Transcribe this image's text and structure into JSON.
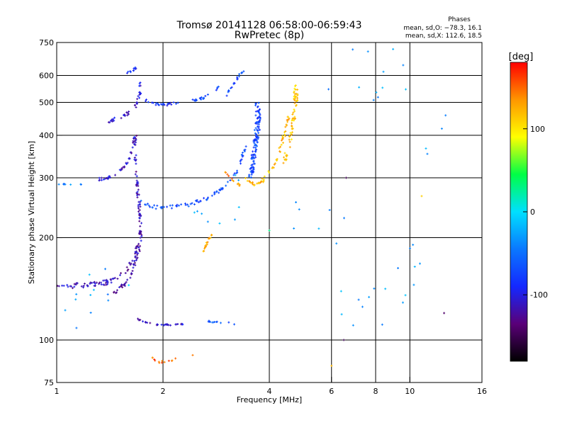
{
  "chart_data": {
    "type": "scatter",
    "title": "Tromsø 20141128 06:58:00-06:59:43",
    "subtitle": "RwPretec (8p)",
    "xlabel": "Frequency [MHz]",
    "ylabel": "Stationary phase Virtual Height [km]",
    "x_scale": "log2",
    "y_scale": "log",
    "xlim": [
      1,
      16
    ],
    "ylim": [
      75,
      750
    ],
    "x_ticks": [
      1,
      2,
      4,
      6,
      8,
      10,
      16
    ],
    "x_tick_labels": [
      "1",
      "2",
      "4",
      "6",
      "8",
      "10",
      "16"
    ],
    "x_grid": [
      2,
      4,
      6,
      8,
      10
    ],
    "y_ticks": [
      75,
      100,
      200,
      300,
      400,
      500,
      600,
      750
    ],
    "y_tick_labels": [
      "75",
      "100",
      "200",
      "300",
      "400",
      "500",
      "600",
      "750"
    ],
    "y_grid": [
      100,
      200,
      300,
      400,
      500,
      600
    ],
    "grid": true,
    "stats": {
      "heading": "Phases",
      "line_o": "mean, sd,O: −78.3, 16.1",
      "line_x": "mean, sd,X: 112.6, 18.5"
    },
    "colorbar": {
      "label": "[deg]",
      "range": [
        -180,
        180
      ],
      "ticks": [
        100,
        0,
        -100
      ],
      "tick_labels": [
        "100",
        "0",
        "-100"
      ],
      "colors": [
        "#000000",
        "#5a0078",
        "#1428ff",
        "#0a78ff",
        "#00e0ff",
        "#00ff46",
        "#ffff00",
        "#ff9600",
        "#ff0000"
      ]
    },
    "series": [
      {
        "trace": [
          [
            1.0,
            145
          ],
          [
            1.05,
            145
          ],
          [
            1.1,
            144
          ],
          [
            1.2,
            145
          ],
          [
            1.3,
            146
          ],
          [
            1.4,
            148
          ],
          [
            1.48,
            152
          ],
          [
            1.55,
            158
          ],
          [
            1.62,
            166
          ],
          [
            1.7,
            180
          ],
          [
            1.73,
            200
          ],
          [
            1.72,
            230
          ],
          [
            1.7,
            270
          ],
          [
            1.68,
            310
          ],
          [
            1.67,
            350
          ],
          [
            1.67,
            400
          ]
        ],
        "phase": -115,
        "spread": [
          0.012,
          0.018
        ],
        "n": 150
      },
      {
        "trace": [
          [
            1.45,
            138
          ],
          [
            1.55,
            145
          ],
          [
            1.62,
            155
          ],
          [
            1.67,
            170
          ],
          [
            1.68,
            190
          ]
        ],
        "phase": -120,
        "spread": [
          0.008,
          0.012
        ],
        "n": 40
      },
      {
        "trace": [
          [
            1.32,
            297
          ],
          [
            1.4,
            300
          ],
          [
            1.5,
            310
          ],
          [
            1.58,
            330
          ],
          [
            1.63,
            360
          ],
          [
            1.66,
            400
          ]
        ],
        "phase": -105,
        "spread": [
          0.008,
          0.01
        ],
        "n": 40
      },
      {
        "trace": [
          [
            1.72,
            255
          ],
          [
            1.9,
            246
          ],
          [
            2.1,
            246
          ],
          [
            2.35,
            250
          ],
          [
            2.6,
            258
          ],
          [
            2.8,
            268
          ],
          [
            2.95,
            280
          ],
          [
            3.1,
            295
          ],
          [
            3.25,
            315
          ],
          [
            3.35,
            345
          ],
          [
            3.45,
            380
          ]
        ],
        "phase": -70,
        "spread": [
          0.01,
          0.012
        ],
        "n": 80
      },
      {
        "trace": [
          [
            1.38,
            438
          ],
          [
            1.5,
            450
          ],
          [
            1.6,
            465
          ],
          [
            1.68,
            490
          ],
          [
            1.72,
            530
          ],
          [
            1.72,
            575
          ]
        ],
        "phase": -105,
        "spread": [
          0.008,
          0.01
        ],
        "n": 40
      },
      {
        "trace": [
          [
            1.75,
            510
          ],
          [
            1.9,
            495
          ],
          [
            2.05,
            493
          ],
          [
            2.2,
            497
          ]
        ],
        "phase": -85,
        "spread": [
          0.008,
          0.008
        ],
        "n": 25
      },
      {
        "trace": [
          [
            2.4,
            505
          ],
          [
            2.6,
            515
          ],
          [
            2.75,
            535
          ],
          [
            2.9,
            555
          ]
        ],
        "phase": -65,
        "spread": [
          0.008,
          0.008
        ],
        "n": 20
      },
      {
        "trace": [
          [
            3.0,
            520
          ],
          [
            3.15,
            560
          ],
          [
            3.3,
            600
          ],
          [
            3.4,
            630
          ]
        ],
        "phase": -75,
        "spread": [
          0.008,
          0.01
        ],
        "n": 20
      },
      {
        "trace": [
          [
            1.58,
            610
          ],
          [
            1.68,
            630
          ]
        ],
        "phase": -90,
        "spread": [
          0.008,
          0.008
        ],
        "n": 10
      },
      {
        "trace": [
          [
            3.55,
            300
          ],
          [
            3.6,
            340
          ],
          [
            3.65,
            380
          ],
          [
            3.7,
            420
          ],
          [
            3.72,
            460
          ],
          [
            3.7,
            500
          ]
        ],
        "phase": -75,
        "spread": [
          0.022,
          0.018
        ],
        "n": 120
      },
      {
        "trace": [
          [
            3.4,
            298
          ],
          [
            3.6,
            287
          ],
          [
            3.8,
            292
          ],
          [
            4.0,
            310
          ],
          [
            4.2,
            340
          ],
          [
            4.35,
            380
          ],
          [
            4.45,
            420
          ],
          [
            4.55,
            460
          ]
        ],
        "phase": 120,
        "spread": [
          0.012,
          0.01
        ],
        "n": 60
      },
      {
        "trace": [
          [
            4.4,
            330
          ],
          [
            4.5,
            360
          ],
          [
            4.6,
            400
          ],
          [
            4.7,
            450
          ],
          [
            4.75,
            500
          ],
          [
            4.75,
            560
          ]
        ],
        "phase": 115,
        "spread": [
          0.02,
          0.015
        ],
        "n": 70
      },
      {
        "trace": [
          [
            3.0,
            310
          ],
          [
            3.1,
            300
          ],
          [
            3.2,
            290
          ],
          [
            3.3,
            285
          ]
        ],
        "phase": 140,
        "spread": [
          0.006,
          0.006
        ],
        "n": 12
      },
      {
        "trace": [
          [
            1.0,
            287
          ],
          [
            1.05,
            287
          ],
          [
            1.2,
            287
          ]
        ],
        "phase": -45,
        "spread": [
          0.004,
          0.003
        ],
        "n": 8
      },
      {
        "trace": [
          [
            1.7,
            115
          ],
          [
            1.9,
            111
          ],
          [
            2.1,
            111
          ],
          [
            2.3,
            111
          ]
        ],
        "phase": -110,
        "spread": [
          0.01,
          0.006
        ],
        "n": 30
      },
      {
        "trace": [
          [
            2.6,
            115
          ],
          [
            2.7,
            113
          ],
          [
            3.1,
            113
          ],
          [
            3.2,
            110
          ]
        ],
        "phase": -60,
        "spread": [
          0.01,
          0.008
        ],
        "n": 14
      },
      {
        "trace": [
          [
            2.55,
            175
          ],
          [
            2.6,
            182
          ],
          [
            2.65,
            190
          ],
          [
            2.7,
            198
          ],
          [
            2.75,
            205
          ]
        ],
        "phase": 125,
        "spread": [
          0.006,
          0.008
        ],
        "n": 18
      },
      {
        "trace": [
          [
            1.85,
            90
          ],
          [
            1.9,
            87
          ],
          [
            1.95,
            86
          ],
          [
            2.45,
            90
          ],
          [
            2.5,
            88
          ]
        ],
        "phase": 150,
        "spread": [
          0.006,
          0.006
        ],
        "n": 14
      },
      {
        "trace": [
          [
            1.2,
            130
          ],
          [
            2.8,
            260
          ],
          [
            5.5,
            220
          ],
          [
            7.5,
            128
          ],
          [
            9.0,
            155
          ],
          [
            6.8,
            580
          ],
          [
            8.5,
            600
          ],
          [
            11,
            420
          ]
        ],
        "phase": -30,
        "spread": [
          0.25,
          0.22
        ],
        "n": 60
      }
    ],
    "outliers": [
      {
        "f": 6.6,
        "h": 300,
        "phase": -150
      },
      {
        "f": 6.5,
        "h": 100,
        "phase": -150
      },
      {
        "f": 12.5,
        "h": 120,
        "phase": -140
      },
      {
        "f": 1.0,
        "h": 100,
        "phase": -160
      },
      {
        "f": 4.0,
        "h": 210,
        "phase": 30
      },
      {
        "f": 6.0,
        "h": 84,
        "phase": 120
      },
      {
        "f": 10.8,
        "h": 265,
        "phase": 110
      },
      {
        "f": 1.6,
        "h": 145,
        "phase": -5
      }
    ]
  }
}
